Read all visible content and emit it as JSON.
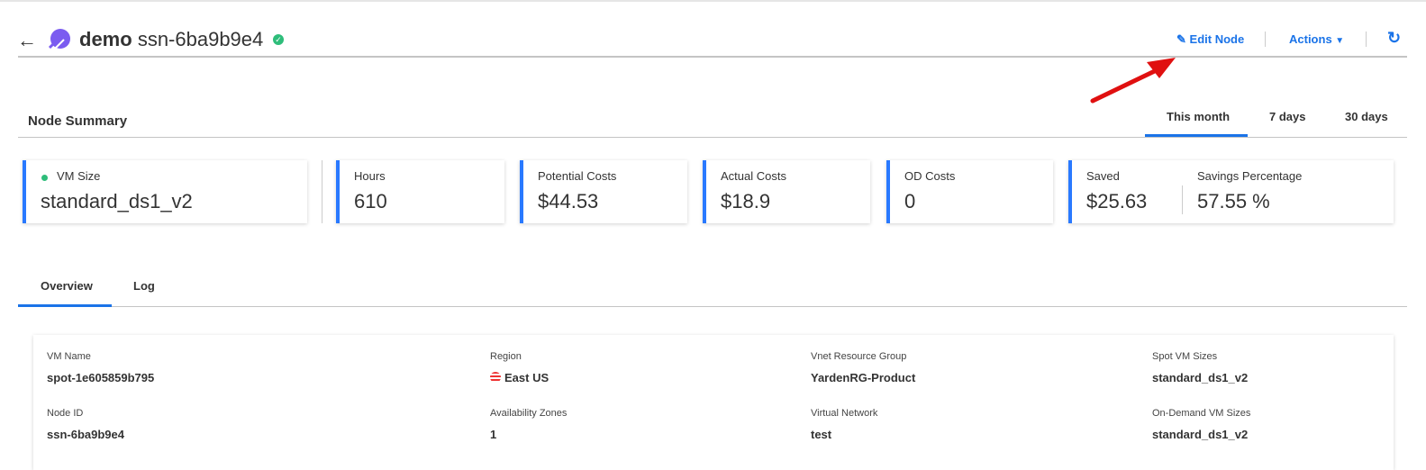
{
  "header": {
    "app_name": "demo",
    "node_name": "ssn-6ba9b9e4",
    "status": "healthy",
    "edit_label": "Edit Node",
    "actions_label": "Actions"
  },
  "summary": {
    "title": "Node Summary",
    "ranges": [
      "This month",
      "7 days",
      "30 days"
    ],
    "active_range": "This month",
    "cards": [
      {
        "label": "VM Size",
        "value": "standard_ds1_v2"
      },
      {
        "label": "Hours",
        "value": "610"
      },
      {
        "label": "Potential Costs",
        "value": "$44.53"
      },
      {
        "label": "Actual Costs",
        "value": "$18.9"
      },
      {
        "label": "OD Costs",
        "value": "0"
      },
      {
        "label": "Saved",
        "value": "$25.63"
      },
      {
        "label": "Savings Percentage",
        "value": "57.55 %"
      }
    ]
  },
  "tabs": [
    "Overview",
    "Log"
  ],
  "details": [
    {
      "label": "VM Name",
      "value": "spot-1e605859b795"
    },
    {
      "label": "Region",
      "value": "East US"
    },
    {
      "label": "Vnet Resource Group",
      "value": "YardenRG-Product"
    },
    {
      "label": "Spot VM Sizes",
      "value": "standard_ds1_v2"
    },
    {
      "label": "Node ID",
      "value": "ssn-6ba9b9e4"
    },
    {
      "label": "Availability Zones",
      "value": "1"
    },
    {
      "label": "Virtual Network",
      "value": "test"
    },
    {
      "label": "On-Demand VM Sizes",
      "value": "standard_ds1_v2"
    }
  ],
  "colors": {
    "accent": "#1a73e8",
    "success": "#2ebd7a",
    "annotation_arrow": "#e01010"
  }
}
